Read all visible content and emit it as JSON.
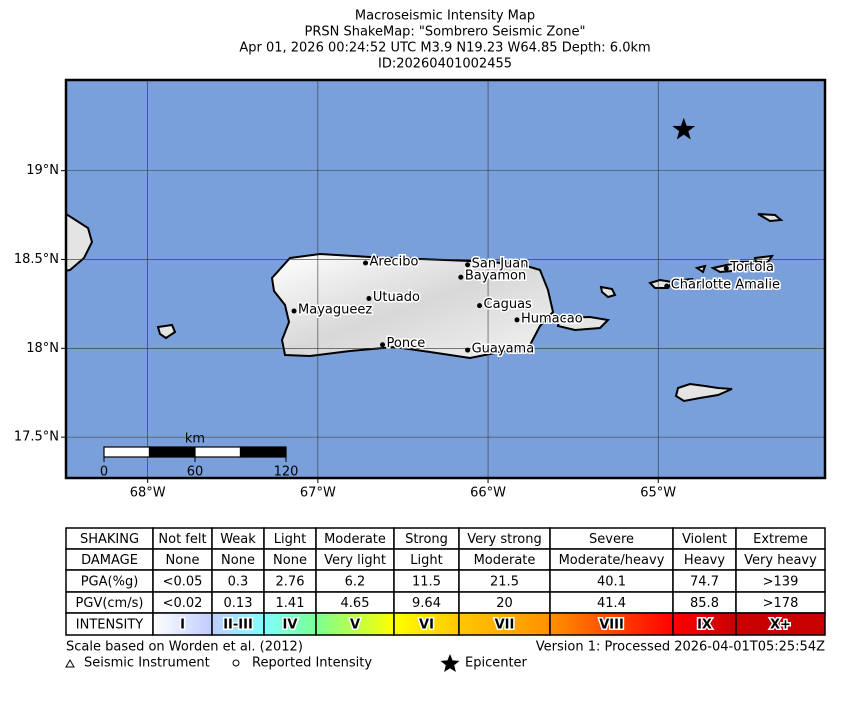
{
  "header": {
    "lines": [
      "Macroseismic Intensity Map",
      "PRSN ShakeMap: \"Sombrero Seismic Zone\"",
      "Apr 01, 2026 00:24:52 UTC M3.9 N19.23 W64.85 Depth: 6.0km",
      "ID:20260401002455"
    ]
  },
  "map": {
    "lonlim": [
      -68.48,
      -64.02
    ],
    "latlim": [
      17.27,
      19.51
    ],
    "lat_ticks": [
      {
        "value": 19,
        "label": "19°N"
      },
      {
        "value": 18.5,
        "label": "18.5°N"
      },
      {
        "value": 18,
        "label": "18°N"
      },
      {
        "value": 17.5,
        "label": "17.5°N"
      }
    ],
    "lon_ticks": [
      {
        "value": -68,
        "label": "68°W"
      },
      {
        "value": -67,
        "label": "67°W"
      },
      {
        "value": -66,
        "label": "66°W"
      },
      {
        "value": -65,
        "label": "65°W"
      }
    ],
    "cities": [
      {
        "name": "Arecibo",
        "lon": -66.72,
        "lat": 18.48
      },
      {
        "name": "San Juan",
        "lon": -66.12,
        "lat": 18.47
      },
      {
        "name": "Bayamon",
        "lon": -66.16,
        "lat": 18.4
      },
      {
        "name": "Utuado",
        "lon": -66.7,
        "lat": 18.28
      },
      {
        "name": "Mayagueez",
        "lon": -67.14,
        "lat": 18.21
      },
      {
        "name": "Caguas",
        "lon": -66.05,
        "lat": 18.24
      },
      {
        "name": "Humacao",
        "lon": -65.83,
        "lat": 18.16
      },
      {
        "name": "Ponce",
        "lon": -66.62,
        "lat": 18.02
      },
      {
        "name": "Guayama",
        "lon": -66.12,
        "lat": 17.99
      },
      {
        "name": "Charlotte Amalie",
        "lon": -64.95,
        "lat": 18.35
      },
      {
        "name": "Tortola",
        "lon": -64.6,
        "lat": 18.45
      }
    ],
    "epicenter": {
      "lon": -64.85,
      "lat": 19.23
    },
    "scale_bar": {
      "unit": "km",
      "ticks": [
        0,
        60,
        120
      ]
    }
  },
  "table": {
    "rows": [
      [
        "SHAKING",
        "Not felt",
        "Weak",
        "Light",
        "Moderate",
        "Strong",
        "Very strong",
        "Severe",
        "Violent",
        "Extreme"
      ],
      [
        "DAMAGE",
        "None",
        "None",
        "None",
        "Very light",
        "Light",
        "Moderate",
        "Moderate/heavy",
        "Heavy",
        "Very heavy"
      ],
      [
        "PGA(%g)",
        "<0.05",
        "0.3",
        "2.76",
        "6.2",
        "11.5",
        "21.5",
        "40.1",
        "74.7",
        ">139"
      ],
      [
        "PGV(cm/s)",
        "<0.02",
        "0.13",
        "1.41",
        "4.65",
        "9.64",
        "20",
        "41.4",
        "85.8",
        ">178"
      ],
      [
        "INTENSITY",
        "I",
        "II-III",
        "IV",
        "V",
        "VI",
        "VII",
        "VIII",
        "IX",
        "X+"
      ]
    ],
    "intensity_colors": [
      "#ffffff",
      "#bfccff",
      "#80ffff",
      "#7aff93",
      "#ffff00",
      "#ffc800",
      "#ff9100",
      "#ff0000",
      "#c80000"
    ]
  },
  "footer": {
    "scale_note": "Scale based on Worden et al. (2012)",
    "version": "Version 1: Processed 2026-04-01T05:25:54Z",
    "legend": [
      "Seismic Instrument",
      "Reported Intensity",
      "Epicenter"
    ]
  }
}
